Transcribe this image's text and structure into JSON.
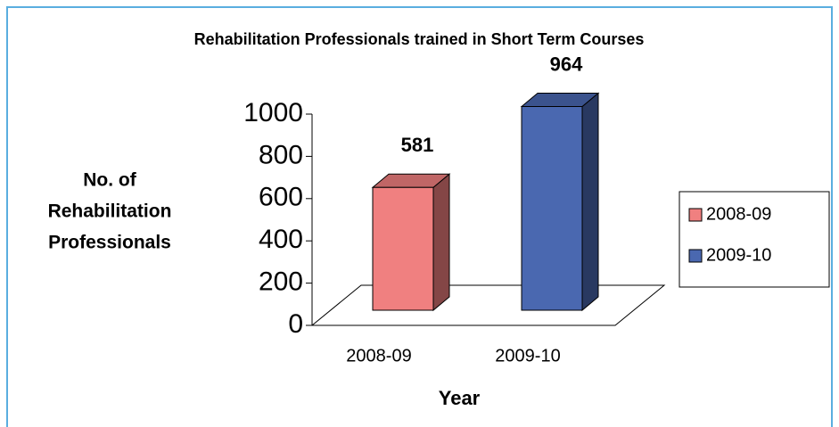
{
  "chart_data": {
    "type": "bar3d",
    "title": "Rehabilitation Professionals trained in Short Term Courses",
    "y_label": [
      "No. of",
      "Rehabilitation",
      "Professionals"
    ],
    "x_label": "Year",
    "categories": [
      "2008-09",
      "2009-10"
    ],
    "values": [
      581,
      964
    ],
    "colors": [
      "#f08080",
      "#4a68b0"
    ],
    "ylim": [
      0,
      1000
    ],
    "yticks": [
      0,
      200,
      400,
      600,
      800,
      1000
    ],
    "legend": "right"
  }
}
